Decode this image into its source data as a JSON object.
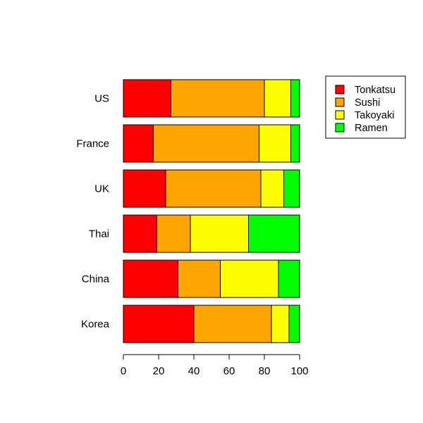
{
  "chart_data": {
    "type": "bar",
    "orientation": "horizontal",
    "stacked": true,
    "title": "",
    "xlabel": "",
    "ylabel": "",
    "xlim": [
      0,
      100
    ],
    "x_ticks": [
      "0",
      "20",
      "40",
      "60",
      "80",
      "100"
    ],
    "x_tick_values": [
      0,
      20,
      40,
      60,
      80,
      100
    ],
    "categories": [
      "US",
      "France",
      "UK",
      "Thai",
      "China",
      "Korea"
    ],
    "series": [
      {
        "name": "Tonkatsu",
        "color": "#FF0000",
        "values": [
          27,
          17,
          24,
          19,
          31,
          40
        ]
      },
      {
        "name": "Sushi",
        "color": "#FFA500",
        "values": [
          53,
          60,
          54,
          19,
          24,
          44
        ]
      },
      {
        "name": "Takoyaki",
        "color": "#FFFF00",
        "values": [
          15,
          18,
          13,
          33,
          33,
          10
        ]
      },
      {
        "name": "Ramen",
        "color": "#00FF00",
        "values": [
          5,
          5,
          9,
          29,
          12,
          6
        ]
      }
    ],
    "legend": {
      "position": "top-right"
    },
    "grid": false
  }
}
